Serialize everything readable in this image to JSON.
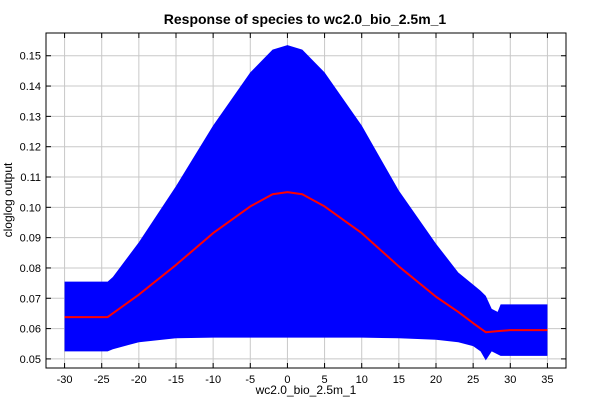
{
  "chart_data": {
    "type": "area",
    "title": "Response of species to wc2.0_bio_2.5m_1",
    "xlabel": "wc2.0_bio_2.5m_1",
    "ylabel": "cloglog output",
    "xlim": [
      -32.5,
      37.5
    ],
    "ylim": [
      0.047,
      0.1575
    ],
    "xticks": [
      -30,
      -25,
      -20,
      -15,
      -10,
      -5,
      0,
      5,
      10,
      15,
      20,
      25,
      30,
      35
    ],
    "yticks": [
      0.05,
      0.06,
      0.07,
      0.08,
      0.09,
      0.1,
      0.11,
      0.12,
      0.13,
      0.14,
      0.15
    ],
    "ytick_labels": [
      "0.05",
      "0.06",
      "0.07",
      "0.08",
      "0.09",
      "0.10",
      "0.11",
      "0.12",
      "0.13",
      "0.14",
      "0.15"
    ],
    "grid": true,
    "series": [
      {
        "role": "band",
        "color": "#0000ff",
        "x": [
          -30,
          -24.2,
          -23.5,
          -20,
          -15,
          -10,
          -5,
          -2,
          0,
          2,
          5,
          10,
          15,
          20,
          23,
          25,
          26,
          26.7,
          27.5,
          28.3,
          28.7,
          35
        ],
        "upper": [
          0.0755,
          0.0755,
          0.077,
          0.0885,
          0.107,
          0.127,
          0.1445,
          0.152,
          0.1535,
          0.152,
          0.1445,
          0.127,
          0.1055,
          0.088,
          0.0785,
          0.0745,
          0.0725,
          0.0708,
          0.0665,
          0.0655,
          0.068,
          0.068
        ],
        "lower": [
          0.0525,
          0.0525,
          0.0532,
          0.0555,
          0.0568,
          0.057,
          0.057,
          0.057,
          0.057,
          0.057,
          0.057,
          0.057,
          0.0568,
          0.0563,
          0.0555,
          0.0542,
          0.0525,
          0.0495,
          0.0525,
          0.0515,
          0.051,
          0.051
        ]
      },
      {
        "role": "mean",
        "color": "#ff0000",
        "x": [
          -30,
          -24.2,
          -20,
          -15,
          -10,
          -5,
          -2,
          0,
          2,
          5,
          10,
          15,
          20,
          23,
          25,
          26.7,
          28.5,
          30,
          35
        ],
        "values": [
          0.0638,
          0.0638,
          0.0712,
          0.081,
          0.0915,
          0.1003,
          0.1043,
          0.105,
          0.1043,
          0.1003,
          0.0915,
          0.0805,
          0.0705,
          0.0655,
          0.0618,
          0.0588,
          0.0592,
          0.0595,
          0.0595
        ]
      }
    ]
  }
}
